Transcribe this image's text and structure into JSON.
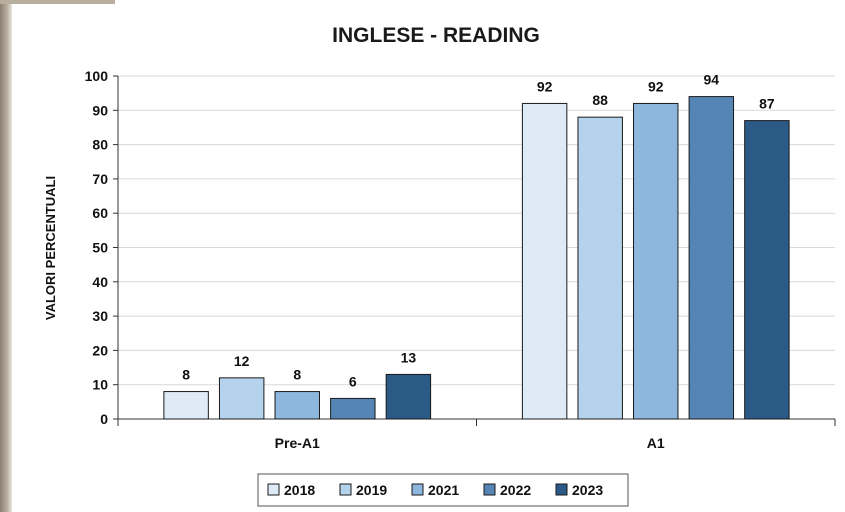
{
  "chart_data": {
    "type": "bar",
    "title": "INGLESE - READING",
    "ylabel": "VALORI PERCENTUALI",
    "xlabel": "",
    "categories": [
      "Pre-A1",
      "A1"
    ],
    "series": [
      {
        "name": "2018",
        "values": [
          8,
          92
        ]
      },
      {
        "name": "2019",
        "values": [
          12,
          88
        ]
      },
      {
        "name": "2021",
        "values": [
          8,
          92
        ]
      },
      {
        "name": "2022",
        "values": [
          6,
          94
        ]
      },
      {
        "name": "2023",
        "values": [
          13,
          87
        ]
      }
    ],
    "ylim": [
      0,
      100
    ],
    "yticks": [
      0,
      10,
      20,
      30,
      40,
      50,
      60,
      70,
      80,
      90,
      100
    ],
    "grid": true,
    "legend_position": "bottom",
    "colors": [
      "#deebf7",
      "#b5d3ec",
      "#8db7dc",
      "#5585b5",
      "#2b5a86"
    ]
  }
}
